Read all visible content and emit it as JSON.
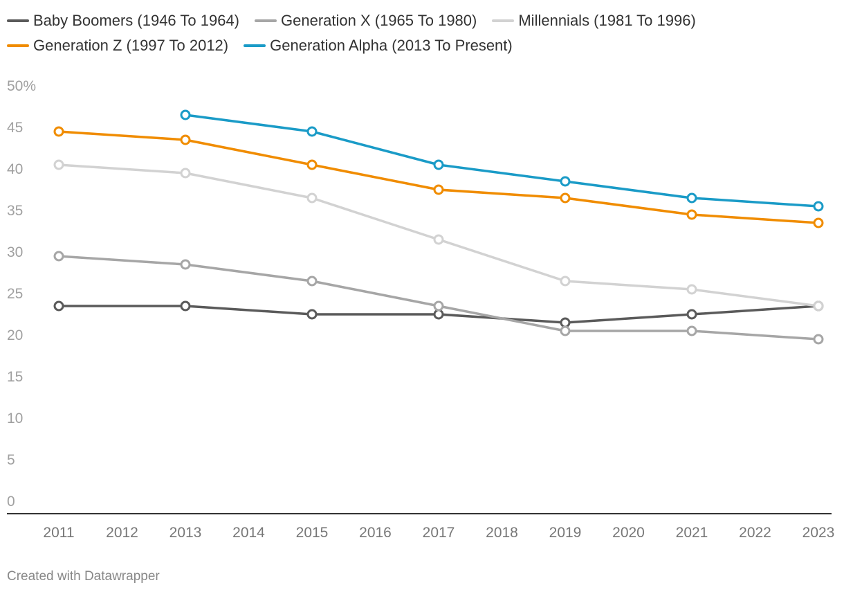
{
  "chart_data": {
    "type": "line",
    "title": "",
    "xlabel": "",
    "ylabel": "",
    "categories": [
      "2011",
      "2012",
      "2013",
      "2014",
      "2015",
      "2016",
      "2017",
      "2018",
      "2019",
      "2020",
      "2021",
      "2022",
      "2023"
    ],
    "y_tick_labels": [
      "0",
      "5",
      "10",
      "15",
      "20",
      "25",
      "30",
      "35",
      "40",
      "45",
      "50%"
    ],
    "ylim": [
      0,
      50
    ],
    "grid": false,
    "legend_position": "top",
    "series": [
      {
        "name": "Baby Boomers (1946 To 1964)",
        "color": "#5a5a5a",
        "x": [
          2011,
          2013,
          2015,
          2017,
          2019,
          2021,
          2023
        ],
        "values": [
          23.5,
          23.5,
          22.5,
          22.5,
          21.5,
          22.5,
          23.5
        ]
      },
      {
        "name": "Generation X (1965 To 1980)",
        "color": "#a6a6a6",
        "x": [
          2011,
          2013,
          2015,
          2017,
          2019,
          2021,
          2023
        ],
        "values": [
          29.5,
          28.5,
          26.5,
          23.5,
          20.5,
          20.5,
          19.5
        ]
      },
      {
        "name": "Millennials (1981 To 1996)",
        "color": "#d2d2d2",
        "x": [
          2011,
          2013,
          2015,
          2017,
          2019,
          2021,
          2023
        ],
        "values": [
          40.5,
          39.5,
          36.5,
          31.5,
          26.5,
          25.5,
          23.5
        ]
      },
      {
        "name": "Generation Z (1997 To 2012)",
        "color": "#f08c00",
        "x": [
          2011,
          2013,
          2015,
          2017,
          2019,
          2021,
          2023
        ],
        "values": [
          44.5,
          43.5,
          40.5,
          37.5,
          36.5,
          34.5,
          33.5
        ]
      },
      {
        "name": "Generation Alpha (2013 To Present)",
        "color": "#1a9bc7",
        "x": [
          2013,
          2015,
          2017,
          2019,
          2021,
          2023
        ],
        "values": [
          46.5,
          44.5,
          40.5,
          38.5,
          36.5,
          35.5
        ]
      }
    ]
  },
  "footer": {
    "credit": "Created with Datawrapper"
  }
}
